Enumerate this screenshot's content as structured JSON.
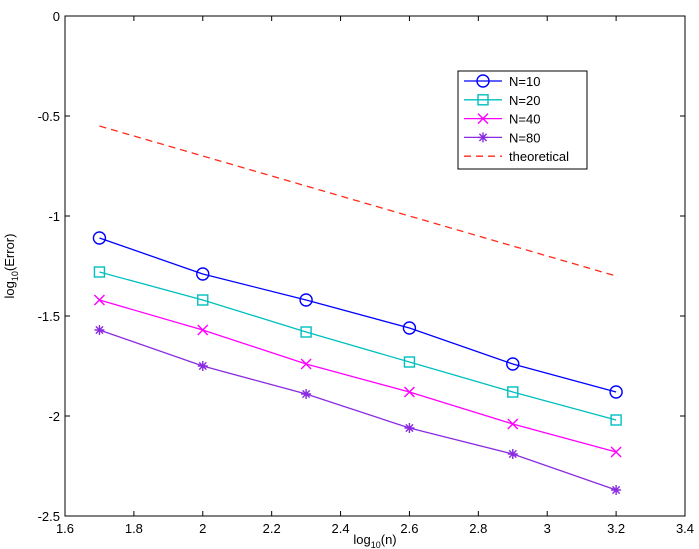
{
  "chart_data": {
    "type": "line",
    "title": "",
    "xlabel": {
      "base": "log",
      "sub": "10",
      "rest": "(n)"
    },
    "ylabel": {
      "base": "log",
      "sub": "10",
      "rest": "(Error)"
    },
    "xlim": [
      1.6,
      3.4
    ],
    "ylim": [
      -2.5,
      0
    ],
    "xticks": [
      1.6,
      1.8,
      2,
      2.2,
      2.4,
      2.6,
      2.8,
      3,
      3.2,
      3.4
    ],
    "xtick_labels": [
      "1.6",
      "1.8",
      "2",
      "2.2",
      "2.4",
      "2.6",
      "2.8",
      "3",
      "3.2",
      "3.4"
    ],
    "yticks": [
      0,
      -0.5,
      -1,
      -1.5,
      -2,
      -2.5
    ],
    "ytick_labels": [
      "0",
      "-0.5",
      "-1",
      "-1.5",
      "-2",
      "-2.5"
    ],
    "grid": false,
    "legend_position": "top-right",
    "x": [
      1.7,
      2.0,
      2.3,
      2.6,
      2.9,
      3.2
    ],
    "series": [
      {
        "name": "N=10",
        "color": "#0000ff",
        "marker": "circle",
        "linestyle": "solid",
        "values": [
          -1.11,
          -1.29,
          -1.42,
          -1.56,
          -1.74,
          -1.88
        ]
      },
      {
        "name": "N=20",
        "color": "#00bfbf",
        "marker": "square",
        "linestyle": "solid",
        "values": [
          -1.28,
          -1.42,
          -1.58,
          -1.73,
          -1.88,
          -2.02
        ]
      },
      {
        "name": "N=40",
        "color": "#ff00ff",
        "marker": "x",
        "linestyle": "solid",
        "values": [
          -1.42,
          -1.57,
          -1.74,
          -1.88,
          -2.04,
          -2.18
        ]
      },
      {
        "name": "N=80",
        "color": "#8a2be2",
        "marker": "asterisk",
        "linestyle": "solid",
        "values": [
          -1.57,
          -1.75,
          -1.89,
          -2.06,
          -2.19,
          -2.37
        ]
      },
      {
        "name": "theoretical",
        "color": "#ff2a1a",
        "marker": "none",
        "linestyle": "dashed",
        "x": [
          1.7,
          3.2
        ],
        "values": [
          -0.55,
          -1.3
        ]
      }
    ]
  }
}
